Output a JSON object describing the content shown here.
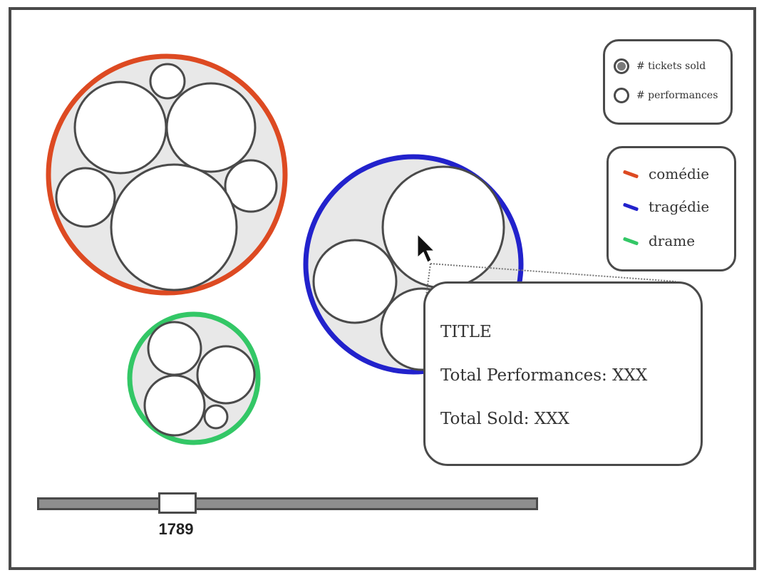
{
  "size_legend": {
    "tickets_label": "# tickets sold",
    "performances_label": "# performances"
  },
  "genre_legend": [
    {
      "label": "comédie",
      "color": "#dd4a22"
    },
    {
      "label": "tragédie",
      "color": "#2222cc"
    },
    {
      "label": "drame",
      "color": "#33c766"
    }
  ],
  "tooltip": {
    "title": "TITLE",
    "performances": "Total Performances: XXX",
    "sold": "Total Sold: XXX"
  },
  "slider": {
    "year": "1789"
  },
  "colors": {
    "outline": "#4a4a4a",
    "cluster_fill": "#e8e8e8",
    "slider_track": "#8e8e8e"
  },
  "icons": [
    "cursor-arrow-icon"
  ]
}
